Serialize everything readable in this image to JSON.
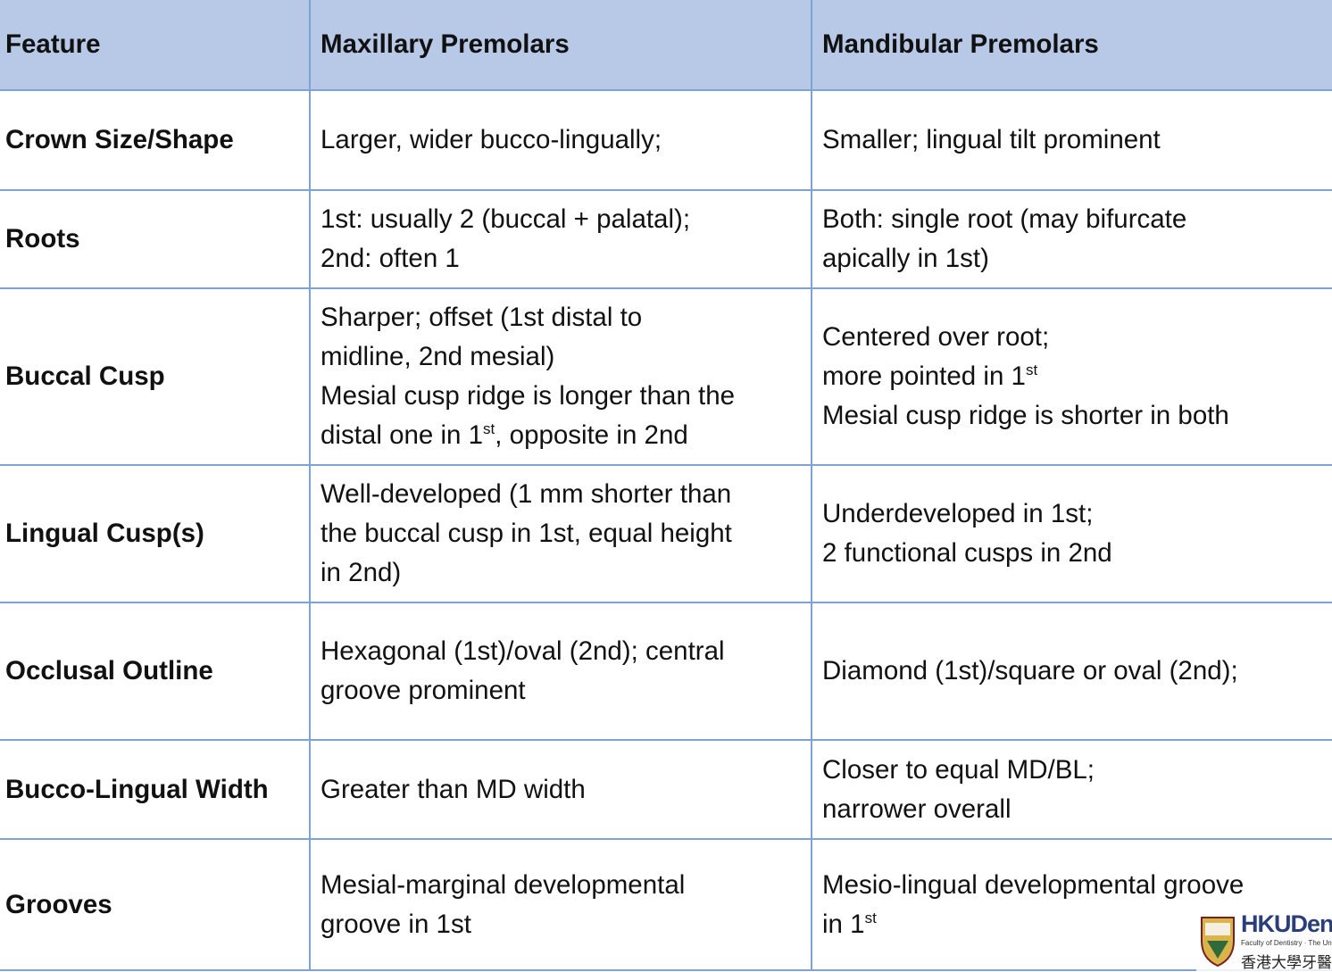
{
  "table": {
    "header": [
      "Feature",
      "Maxillary Premolars",
      "Mandibular Premolars"
    ],
    "rows": [
      [
        [
          [
            "Crown Size/Shape"
          ]
        ],
        [
          [
            "Larger, wider bucco-lingually;"
          ]
        ],
        [
          [
            "Smaller; lingual tilt prominent"
          ]
        ]
      ],
      [
        [
          [
            "Roots"
          ]
        ],
        [
          [
            "1st: usually 2 (buccal + palatal);"
          ],
          [
            "2nd: often 1"
          ]
        ],
        [
          [
            "Both: single root (may bifurcate"
          ],
          [
            "apically in 1st)"
          ]
        ]
      ],
      [
        [
          [
            "Buccal Cusp"
          ]
        ],
        [
          [
            "Sharper; offset (1st distal to"
          ],
          [
            "midline, 2nd mesial)"
          ],
          [
            "Mesial cusp ridge is longer than the"
          ],
          [
            "distal one in 1",
            {
              "sup": "st"
            },
            ", opposite in 2nd"
          ]
        ],
        [
          [
            "Centered over root;"
          ],
          [
            "more pointed in 1",
            {
              "sup": "st"
            }
          ],
          [
            "Mesial cusp ridge is shorter in both"
          ]
        ]
      ],
      [
        [
          [
            "Lingual Cusp(s)"
          ]
        ],
        [
          [
            "Well-developed (1 mm shorter than"
          ],
          [
            "the buccal cusp in 1st, equal height"
          ],
          [
            "in 2nd)"
          ]
        ],
        [
          [
            "Underdeveloped in 1st;"
          ],
          [
            "2 functional cusps in 2nd"
          ]
        ]
      ],
      [
        [
          [
            "Occlusal Outline"
          ]
        ],
        [
          [
            "Hexagonal (1st)/oval (2nd); central"
          ],
          [
            "groove prominent"
          ]
        ],
        [
          [
            "Diamond (1st)/square or oval (2nd);"
          ]
        ]
      ],
      [
        [
          [
            "Bucco-Lingual Width"
          ]
        ],
        [
          [
            "Greater than MD width"
          ]
        ],
        [
          [
            "Closer to equal MD/BL;"
          ],
          [
            "narrower overall"
          ]
        ]
      ],
      [
        [
          [
            "Grooves"
          ]
        ],
        [
          [
            "Mesial-marginal developmental"
          ],
          [
            "groove in 1st"
          ]
        ],
        [
          [
            "Mesio-lingual developmental groove"
          ],
          [
            "in 1",
            {
              "sup": "st"
            }
          ]
        ]
      ]
    ]
  },
  "logo": {
    "name": "HKUDen",
    "subtitle": "Faculty of Dentistry · The University",
    "chinese": "香港大學牙醫"
  }
}
